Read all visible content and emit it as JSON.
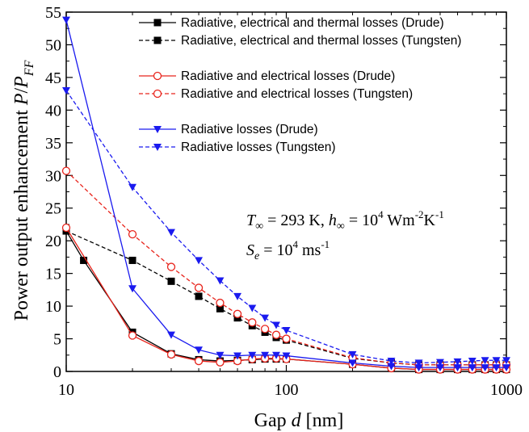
{
  "chart_data": {
    "type": "line",
    "xlabel_text": "Gap ",
    "xlabel_var": "d",
    "xlabel_unit": " [nm]",
    "ylabel_text": "Power output enhancement ",
    "ylabel_var": "P",
    "ylabel_slash": "/",
    "ylabel_var2": "P",
    "ylabel_sub": "FF",
    "xscale": "log",
    "xlim": [
      10,
      1000
    ],
    "ylim": [
      0,
      55
    ],
    "x_ticks": [
      10,
      100,
      1000
    ],
    "x_tick_labels": [
      "10",
      "100",
      "1000"
    ],
    "y_ticks": [
      0,
      5,
      10,
      15,
      20,
      25,
      30,
      35,
      40,
      45,
      50,
      55
    ],
    "y_tick_labels": [
      "0",
      "5",
      "10",
      "15",
      "20",
      "25",
      "30",
      "35",
      "40",
      "45",
      "50",
      "55"
    ],
    "grid": false,
    "legend_position": "top-right",
    "series": [
      {
        "name": "Radiative, electrical and thermal losses (Drude)",
        "color": "#000000",
        "dash": "solid",
        "marker": "square-filled",
        "x": [
          10,
          12,
          20,
          30,
          40,
          50,
          60,
          70,
          80,
          90,
          100,
          200,
          300,
          400,
          500,
          600,
          700,
          800,
          900,
          1000
        ],
        "y": [
          21.5,
          17,
          6,
          2.7,
          1.8,
          1.6,
          1.7,
          1.8,
          1.9,
          1.9,
          1.9,
          1.1,
          0.5,
          0.3,
          0.3,
          0.3,
          0.3,
          0.3,
          0.3,
          0.3
        ]
      },
      {
        "name": "Radiative, electrical and thermal losses (Tungsten)",
        "color": "#000000",
        "dash": "dashed",
        "marker": "square-filled",
        "x": [
          10,
          20,
          30,
          40,
          50,
          60,
          70,
          80,
          90,
          100,
          200,
          300,
          400,
          500,
          600,
          700,
          800,
          900,
          1000
        ],
        "y": [
          21.5,
          17,
          13.8,
          11.5,
          9.6,
          8.2,
          7,
          6,
          5.2,
          4.8,
          2,
          1.3,
          1,
          1,
          1,
          1,
          1,
          1,
          1
        ]
      },
      {
        "name": "Radiative and electrical losses (Drude)",
        "color": "#e8241c",
        "dash": "solid",
        "marker": "circle-open",
        "x": [
          10,
          20,
          30,
          40,
          50,
          60,
          70,
          80,
          90,
          100,
          200,
          300,
          400,
          500,
          600,
          700,
          800,
          900,
          1000
        ],
        "y": [
          22,
          5.5,
          2.6,
          1.6,
          1.4,
          1.6,
          1.9,
          2,
          2,
          1.9,
          1.1,
          0.5,
          0.3,
          0.3,
          0.3,
          0.3,
          0.3,
          0.3,
          0.3
        ]
      },
      {
        "name": "Radiative and electrical losses (Tungsten)",
        "color": "#e8241c",
        "dash": "dashed",
        "marker": "circle-open",
        "x": [
          10,
          20,
          30,
          40,
          50,
          60,
          70,
          80,
          90,
          100,
          200,
          300,
          400,
          500,
          600,
          700,
          800,
          900,
          1000
        ],
        "y": [
          30.7,
          21,
          16,
          12.8,
          10.5,
          8.8,
          7.5,
          6.5,
          5.6,
          5,
          2.1,
          1.3,
          1,
          1,
          1,
          1,
          1,
          1,
          1
        ]
      },
      {
        "name": "Radiative losses (Drude)",
        "color": "#1a1aef",
        "dash": "solid",
        "marker": "triangle-down-filled",
        "x": [
          10,
          20,
          30,
          40,
          50,
          60,
          70,
          80,
          90,
          100,
          200,
          300,
          400,
          500,
          600,
          700,
          800,
          900,
          1000
        ],
        "y": [
          53.8,
          12.7,
          5.6,
          3.3,
          2.5,
          2.4,
          2.5,
          2.5,
          2.5,
          2.4,
          1.3,
          0.8,
          0.6,
          0.6,
          0.6,
          0.6,
          0.6,
          0.6,
          0.6
        ]
      },
      {
        "name": "Radiative losses (Tungsten)",
        "color": "#1a1aef",
        "dash": "dashed",
        "marker": "triangle-down-filled",
        "x": [
          10,
          20,
          30,
          40,
          50,
          60,
          70,
          80,
          90,
          100,
          200,
          300,
          400,
          500,
          600,
          700,
          800,
          900,
          1000
        ],
        "y": [
          43,
          28.2,
          21.3,
          17,
          13.9,
          11.5,
          9.7,
          8.2,
          7.1,
          6.3,
          2.6,
          1.6,
          1.3,
          1.4,
          1.5,
          1.6,
          1.7,
          1.7,
          1.7
        ]
      }
    ],
    "annotations": {
      "line1": {
        "T": "T",
        "T_sub": "∞",
        "eq1": " = 293 K, ",
        "h": "h",
        "h_sub": "∞",
        "eq2": " = 10",
        "exp1": "4",
        "unit1": " Wm",
        "exp2": "-2",
        "unit2": "K",
        "exp3": "-1"
      },
      "line2": {
        "S": "S",
        "S_sub": "e",
        "eq": " = 10",
        "exp1": "4",
        "unit": " ms",
        "exp2": "-1"
      }
    }
  }
}
